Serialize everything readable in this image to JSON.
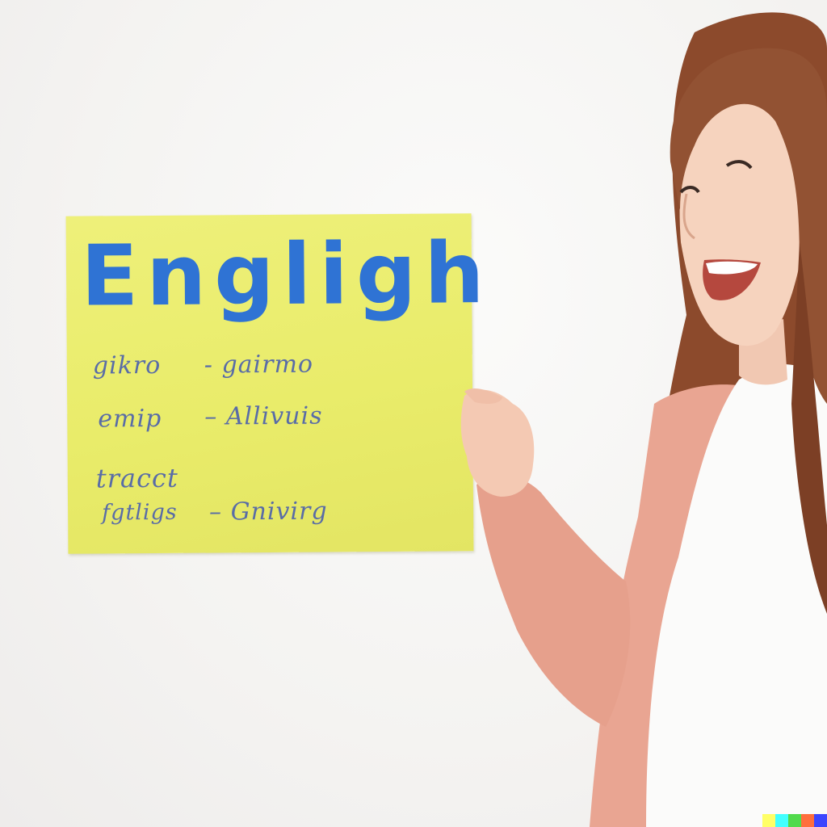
{
  "scene": {
    "description_label": "Smiling woman pointing at a yellow English poster",
    "background_color": "#f6f5f3"
  },
  "poster": {
    "title": "Engligh",
    "title_color": "#2f73d4",
    "background_color": "#ebee6e",
    "lines": [
      {
        "left": "gikro",
        "sep": "-",
        "right": "gairmo"
      },
      {
        "left": "emip",
        "sep": "–",
        "right": "Allivuis"
      },
      {
        "left": "tracct",
        "sep": "",
        "right": ""
      },
      {
        "left": "fgtligs",
        "sep": "–",
        "right": "Gnivirg"
      }
    ]
  },
  "person": {
    "hair_color": "#8a4a2e",
    "cardigan_color": "#e8a491",
    "shirt_color": "#fbfbfa",
    "skin_color": "#f6d2bd"
  },
  "watermark": {
    "colors": [
      "#ffff66",
      "#42ffff",
      "#51da4c",
      "#ff6e3c",
      "#3c46ff"
    ]
  }
}
